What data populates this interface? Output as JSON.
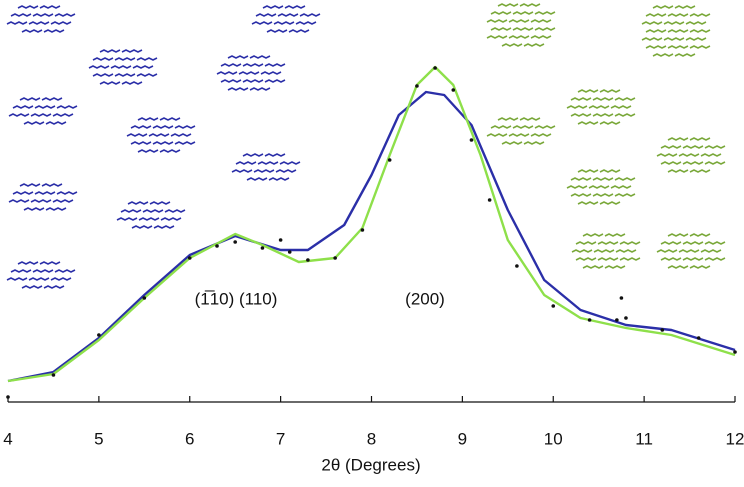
{
  "chart_data": {
    "type": "line",
    "x_label": "2θ (Degrees)",
    "annotations": [
      "(1̅10) (110)",
      "(200)"
    ],
    "xlim": [
      4,
      12
    ],
    "xticks": [
      4,
      5,
      6,
      7,
      8,
      9,
      10,
      11,
      12
    ],
    "ylim": [
      0,
      100
    ],
    "series": [
      {
        "style": "dots",
        "color": "#111111",
        "x": [
          4,
          4.5,
          5,
          5.5,
          6,
          6.3,
          6.5,
          6.8,
          7.0,
          7.1,
          7.3,
          7.6,
          7.9,
          8.2,
          8.5,
          8.7,
          8.9,
          9.1,
          9.3,
          9.6,
          10,
          10.4,
          10.7,
          10.75,
          10.8,
          11.2,
          11.6,
          12
        ],
        "values": [
          1.25,
          6.75,
          16.75,
          26,
          36,
          39,
          40,
          38.5,
          40.5,
          37.5,
          35.5,
          36,
          43,
          60.5,
          79,
          83.5,
          78,
          65.5,
          50.5,
          34,
          24,
          20.5,
          20.5,
          26,
          21,
          18,
          16,
          12.5
        ]
      },
      {
        "style": "line",
        "color": "#2b2fa8",
        "x": [
          4,
          4.5,
          5,
          5.5,
          6,
          6.5,
          7,
          7.3,
          7.7,
          8,
          8.3,
          8.6,
          8.8,
          9.1,
          9.5,
          9.9,
          10.3,
          10.8,
          11.3,
          12
        ],
        "values": [
          5.25,
          7.5,
          16,
          26.75,
          36.75,
          41.5,
          38,
          38,
          44.25,
          56.75,
          71.75,
          77.5,
          76.75,
          69.25,
          48,
          30.5,
          23,
          19.25,
          18,
          13
        ]
      },
      {
        "style": "line",
        "color": "#8ee04a",
        "x": [
          4,
          4.5,
          5,
          5.5,
          6,
          6.5,
          6.8,
          7.2,
          7.6,
          7.9,
          8.2,
          8.5,
          8.7,
          8.9,
          9.2,
          9.5,
          9.9,
          10.3,
          10.8,
          11.3,
          12
        ],
        "values": [
          5.25,
          7,
          15.5,
          26,
          36,
          42,
          39.25,
          35,
          36,
          43.5,
          61.75,
          79.25,
          83.75,
          79.25,
          61.75,
          40.5,
          26.75,
          21,
          18.5,
          16.75,
          11.75
        ]
      }
    ]
  }
}
